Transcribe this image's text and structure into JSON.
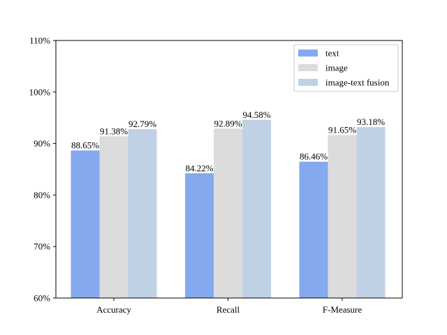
{
  "chart_data": {
    "type": "bar",
    "categories": [
      "Accuracy",
      "Recall",
      "F-Measure"
    ],
    "series": [
      {
        "name": "text",
        "color": "#84a9ef",
        "values": [
          88.65,
          84.22,
          86.46
        ]
      },
      {
        "name": "image",
        "color": "#dcdcdc",
        "values": [
          91.38,
          92.89,
          91.65
        ]
      },
      {
        "name": "image-text fusion",
        "color": "#c0d1e5",
        "values": [
          92.79,
          94.58,
          93.18
        ]
      }
    ],
    "value_labels": [
      [
        "88.65%",
        "84.22%",
        "86.46%"
      ],
      [
        "91.38%",
        "92.89%",
        "91.65%"
      ],
      [
        "92.79%",
        "94.58%",
        "93.18%"
      ]
    ],
    "ylim": [
      60,
      110
    ],
    "yticks": [
      60,
      70,
      80,
      90,
      100,
      110
    ],
    "ytick_labels": [
      "60%",
      "70%",
      "80%",
      "90%",
      "100%",
      "110%"
    ],
    "title": "",
    "xlabel": "",
    "ylabel": "",
    "grid": false,
    "legend_position": "top-right"
  }
}
